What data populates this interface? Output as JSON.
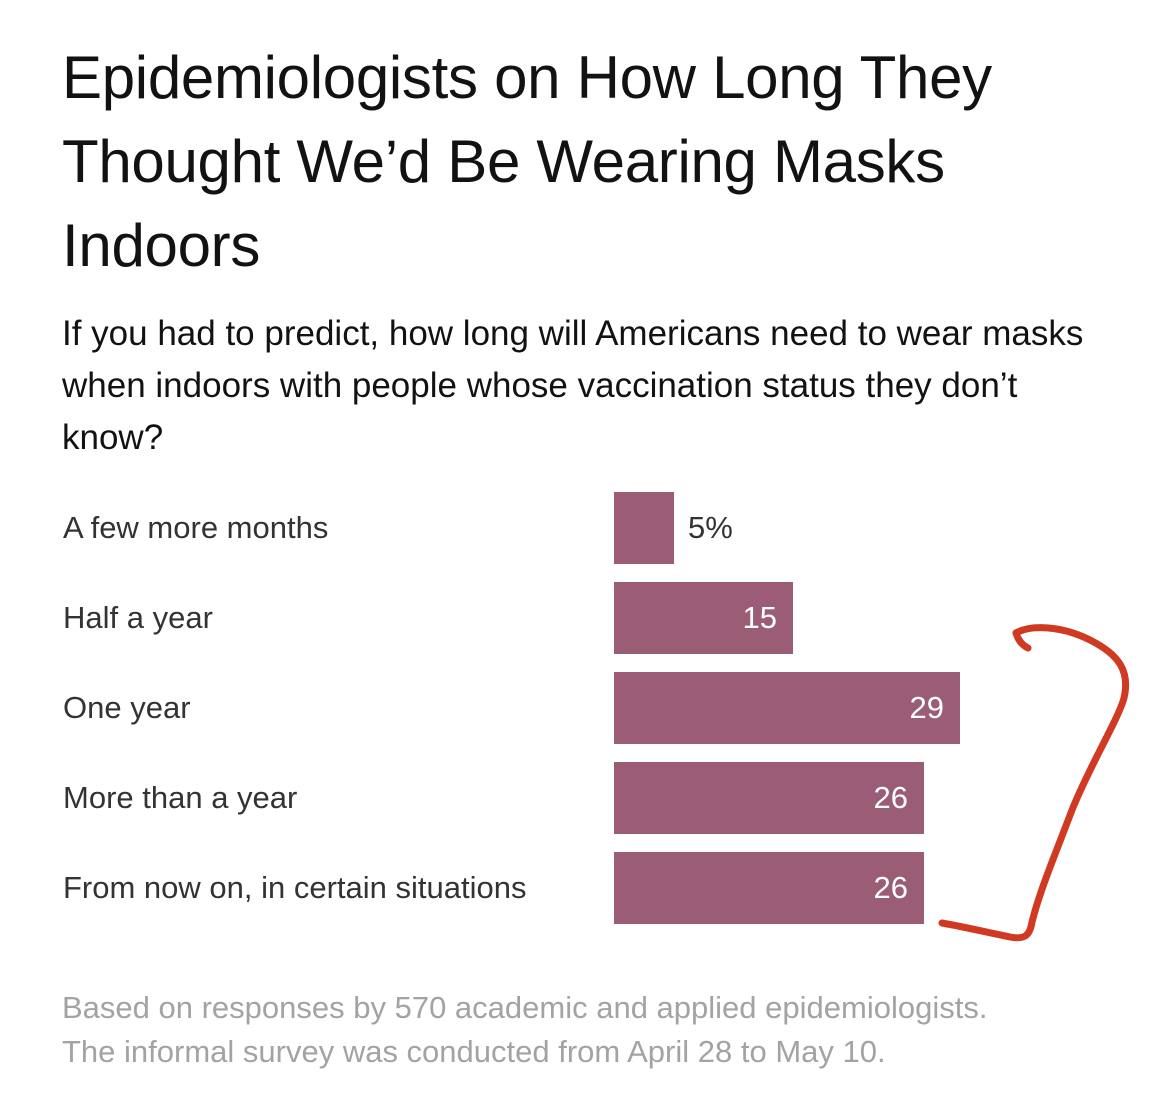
{
  "title": "Epidemiologists on How Long They Thought We’d Be Wearing Masks Indoors",
  "subtitle": "If you had to predict, how long will Americans need to wear masks when indoors with people whose vaccination status they don’t know?",
  "note_line1": "Based on responses by 570 academic and applied epidemiologists.",
  "note_line2": "The informal survey was conducted from April 28 to May 10.",
  "colors": {
    "bar": "#9b5c76",
    "annotation_stroke": "#d13a22",
    "note_text": "#a3a3a3"
  },
  "chart_data": {
    "type": "bar",
    "orientation": "horizontal",
    "categories": [
      "A few more months",
      "Half a year",
      "One year",
      "More than a year",
      "From now on, in certain situations"
    ],
    "values": [
      5,
      15,
      29,
      26,
      26
    ],
    "value_labels": [
      "5%",
      "15",
      "29",
      "26",
      "26"
    ],
    "unit": "%",
    "xlim": [
      0,
      29
    ],
    "grid": false,
    "legend": "none"
  },
  "annotation": {
    "type": "hand-drawn bracket",
    "spans": [
      "One year",
      "More than a year",
      "From now on, in certain situations"
    ]
  }
}
